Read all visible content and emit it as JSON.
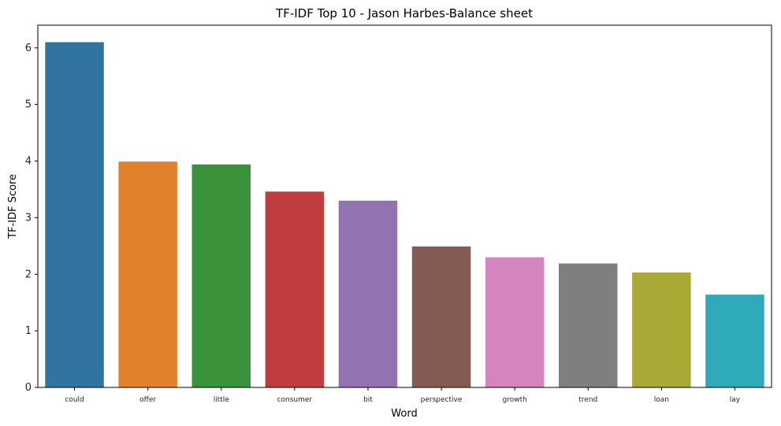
{
  "chart_data": {
    "type": "bar",
    "title": "TF-IDF Top 10 - Jason Harbes-Balance sheet",
    "xlabel": "Word",
    "ylabel": "TF-IDF Score",
    "categories": [
      "could",
      "offer",
      "little",
      "consumer",
      "bit",
      "perspective",
      "growth",
      "trend",
      "loan",
      "lay"
    ],
    "values": [
      6.1,
      3.99,
      3.94,
      3.46,
      3.3,
      2.49,
      2.3,
      2.19,
      2.03,
      1.64
    ],
    "colors": [
      "#3274a1",
      "#e1812c",
      "#3a923a",
      "#c03d3e",
      "#9372b2",
      "#845b53",
      "#d684bd",
      "#7f7f7f",
      "#a9aa35",
      "#2eaab8"
    ],
    "yticks": [
      "0",
      "1",
      "2",
      "3",
      "4",
      "5",
      "6"
    ],
    "ylim": [
      0,
      6.4
    ],
    "grid": false,
    "legend": "none"
  }
}
